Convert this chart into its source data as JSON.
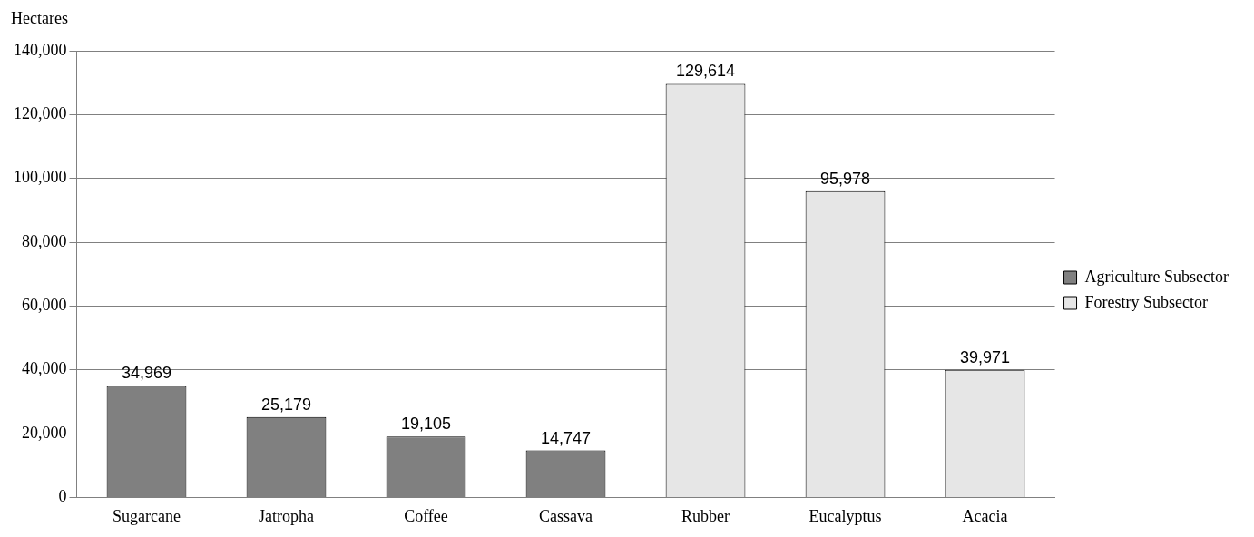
{
  "chart_data": {
    "type": "bar",
    "ylabel": "Hectares",
    "categories": [
      "Sugarcane",
      "Jatropha",
      "Coffee",
      "Cassava",
      "Rubber",
      "Eucalyptus",
      "Acacia"
    ],
    "series": [
      {
        "name": "Agriculture Subsector",
        "color": "#808080",
        "values": [
          34969,
          25179,
          19105,
          14747,
          null,
          null,
          null
        ],
        "value_labels": [
          "34,969",
          "25,179",
          "19,105",
          "14,747",
          null,
          null,
          null
        ]
      },
      {
        "name": "Forestry Subsector",
        "color": "#e6e6e6",
        "values": [
          null,
          null,
          null,
          null,
          129614,
          95978,
          39971
        ],
        "value_labels": [
          null,
          null,
          null,
          null,
          "129,614",
          "95,978",
          "39,971"
        ]
      }
    ],
    "ylim": [
      0,
      140000
    ],
    "yticks": [
      {
        "value": 0,
        "label": "0"
      },
      {
        "value": 20000,
        "label": "20,000"
      },
      {
        "value": 40000,
        "label": "40,000"
      },
      {
        "value": 60000,
        "label": "60,000"
      },
      {
        "value": 80000,
        "label": "80,000"
      },
      {
        "value": 100000,
        "label": "100,000"
      },
      {
        "value": 120000,
        "label": "120,000"
      },
      {
        "value": 140000,
        "label": "140,000"
      }
    ],
    "grid": "y",
    "legend": "right"
  }
}
